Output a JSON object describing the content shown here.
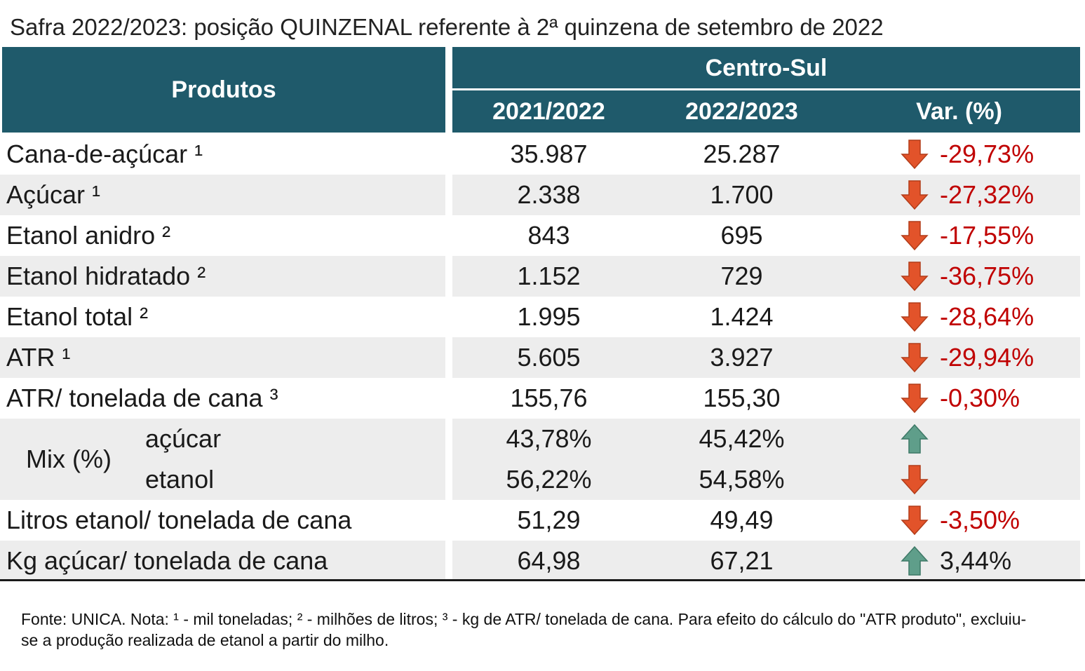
{
  "title": "Safra 2022/2023: posição QUINZENAL referente à 2ª quinzena de setembro de 2022",
  "header": {
    "produtos": "Produtos",
    "region": "Centro-Sul",
    "col1": "2021/2022",
    "col2": "2022/2023",
    "col3": "Var. (%)"
  },
  "rows": [
    {
      "label": "Cana-de-açúcar ¹",
      "v1": "35.987",
      "v2": "25.287",
      "var": "-29,73%",
      "dir": "down"
    },
    {
      "label": "Açúcar ¹",
      "v1": "2.338",
      "v2": "1.700",
      "var": "-27,32%",
      "dir": "down"
    },
    {
      "label": "Etanol anidro ²",
      "v1": "843",
      "v2": "695",
      "var": "-17,55%",
      "dir": "down"
    },
    {
      "label": "Etanol hidratado ²",
      "v1": "1.152",
      "v2": "729",
      "var": "-36,75%",
      "dir": "down"
    },
    {
      "label": "Etanol total ²",
      "v1": "1.995",
      "v2": "1.424",
      "var": "-28,64%",
      "dir": "down"
    },
    {
      "label": "ATR ¹",
      "v1": "5.605",
      "v2": "3.927",
      "var": "-29,94%",
      "dir": "down"
    },
    {
      "label": "ATR/ tonelada de cana ³",
      "v1": "155,76",
      "v2": "155,30",
      "var": "-0,30%",
      "dir": "down"
    }
  ],
  "mix": {
    "label": "Mix (%)",
    "rows": [
      {
        "label": "açúcar",
        "v1": "43,78%",
        "v2": "45,42%",
        "dir": "up"
      },
      {
        "label": "etanol",
        "v1": "56,22%",
        "v2": "54,58%",
        "dir": "down"
      }
    ]
  },
  "tail_rows": [
    {
      "label": "Litros etanol/ tonelada de cana",
      "v1": "51,29",
      "v2": "49,49",
      "var": "-3,50%",
      "dir": "down"
    },
    {
      "label": "Kg açúcar/ tonelada de cana",
      "v1": "64,98",
      "v2": "67,21",
      "var": "3,44%",
      "dir": "up"
    }
  ],
  "footnote": "Fonte: UNICA. Nota: ¹ - mil toneladas; ² - milhões de litros; ³ - kg de ATR/ tonelada de cana. Para efeito do cálculo do \"ATR produto\", excluiu-se a produção realizada de etanol a partir do milho.",
  "colors": {
    "header": "#1f5a6b",
    "down_arrow": "#e2532a",
    "up_arrow": "#5f9e8a",
    "negative_text": "#c00000",
    "shade": "#ededed"
  }
}
